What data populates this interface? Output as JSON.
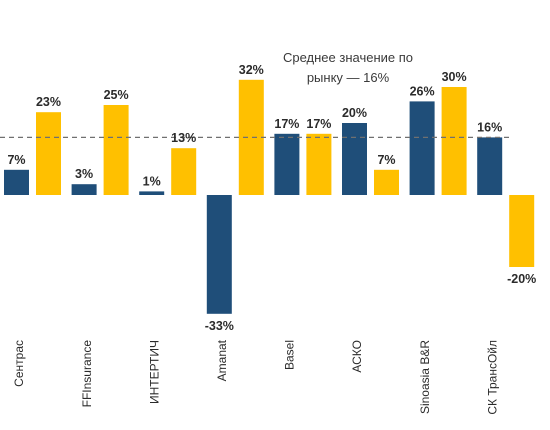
{
  "chart_data": {
    "type": "bar",
    "categories": [
      "Сентрас",
      "FFInsurance",
      "ИНТЕРТИЧ",
      "Amanat",
      "Basel",
      "АСКО",
      "Sinoasia B&R",
      "СК ТрансОйл"
    ],
    "series": [
      {
        "values": [
          7,
          3,
          1,
          -33,
          17,
          20,
          26,
          16
        ],
        "color": "#1f4e79"
      },
      {
        "values": [
          23,
          25,
          13,
          32,
          17,
          7,
          30,
          -20
        ],
        "color": "#ffc000"
      }
    ],
    "value_labels": [
      [
        "7%",
        "3%",
        "1%",
        "-33%",
        "17%",
        "20%",
        "26%",
        "16%"
      ],
      [
        "23%",
        "25%",
        "13%",
        "32%",
        "17%",
        "7%",
        "30%",
        "-20%"
      ]
    ],
    "reference_line": {
      "value": 16,
      "style": "dashed",
      "color": "#707070"
    },
    "annotation": [
      "Среднее значение по",
      "рынку — 16%"
    ],
    "ylim": [
      -36,
      46
    ],
    "grid": false,
    "legend": "none"
  }
}
